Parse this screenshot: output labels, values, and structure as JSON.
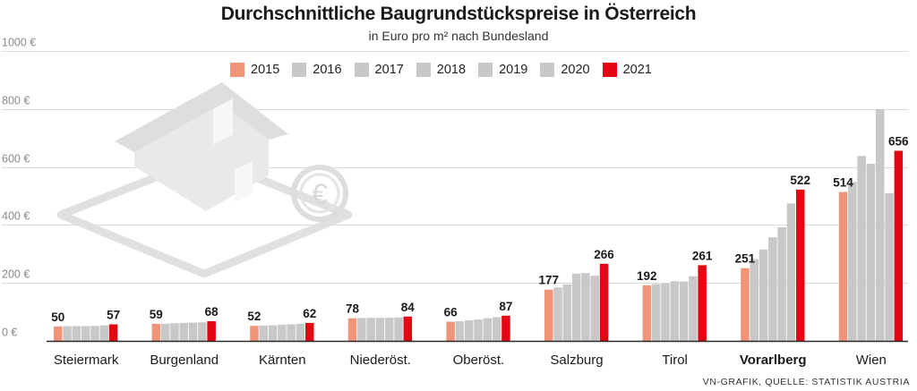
{
  "colors": {
    "y2015": "#f0957a",
    "mid": "#c8c8c8",
    "y2021": "#e30613",
    "grid": "#d9d9d9",
    "illustration": "#e6e6e6"
  },
  "icons": [
    "house-illustration",
    "euro-coin-icon"
  ],
  "source": "VN-GRAFIK, QUELLE: STATISTIK AUSTRIA",
  "chart_data": {
    "type": "bar",
    "title": "Durchschnittliche Baugrundstückspreise  in Österreich",
    "subtitle": "in Euro pro m² nach Bundesland",
    "ylim": [
      0,
      1000
    ],
    "yticks": [
      {
        "value": 0,
        "label": "0 €"
      },
      {
        "value": 200,
        "label": "200 €"
      },
      {
        "value": 400,
        "label": "400 €"
      },
      {
        "value": 600,
        "label": "600 €"
      },
      {
        "value": 800,
        "label": "800 €"
      },
      {
        "value": 1000,
        "label": "1000 €"
      }
    ],
    "grid": true,
    "legend": [
      "2015",
      "2016",
      "2017",
      "2018",
      "2019",
      "2020",
      "2021"
    ],
    "legend_position": "top-center",
    "categories": [
      {
        "name": "Steiermark",
        "bold": false,
        "values": [
          50,
          51,
          51,
          51,
          52,
          54,
          57
        ]
      },
      {
        "name": "Burgenland",
        "bold": false,
        "values": [
          59,
          59,
          61,
          62,
          63,
          64,
          68
        ]
      },
      {
        "name": "Kärnten",
        "bold": false,
        "values": [
          52,
          53,
          54,
          56,
          57,
          59,
          62
        ]
      },
      {
        "name": "Niederöst.",
        "bold": false,
        "values": [
          78,
          79,
          80,
          80,
          80,
          81,
          84
        ]
      },
      {
        "name": "Oberöst.",
        "bold": false,
        "values": [
          66,
          68,
          71,
          74,
          78,
          82,
          87
        ]
      },
      {
        "name": "Salzburg",
        "bold": false,
        "values": [
          177,
          184,
          195,
          232,
          234,
          225,
          266
        ]
      },
      {
        "name": "Tirol",
        "bold": false,
        "values": [
          192,
          196,
          198,
          206,
          205,
          223,
          261
        ]
      },
      {
        "name": "Vorarlberg",
        "bold": true,
        "values": [
          251,
          282,
          315,
          357,
          392,
          474,
          522
        ]
      },
      {
        "name": "Wien",
        "bold": false,
        "values": [
          514,
          548,
          638,
          611,
          800,
          510,
          656
        ]
      }
    ],
    "value_labels": {
      "Steiermark": [
        "50",
        "57"
      ],
      "Burgenland": [
        "59",
        "68"
      ],
      "Kärnten": [
        "52",
        "62"
      ],
      "Niederöst.": [
        "78",
        "84"
      ],
      "Oberöst.": [
        "66",
        "87"
      ],
      "Salzburg": [
        "177",
        "266"
      ],
      "Tirol": [
        "192",
        "261"
      ],
      "Vorarlberg": [
        "251",
        "522"
      ],
      "Wien": [
        "514",
        "656"
      ]
    }
  }
}
